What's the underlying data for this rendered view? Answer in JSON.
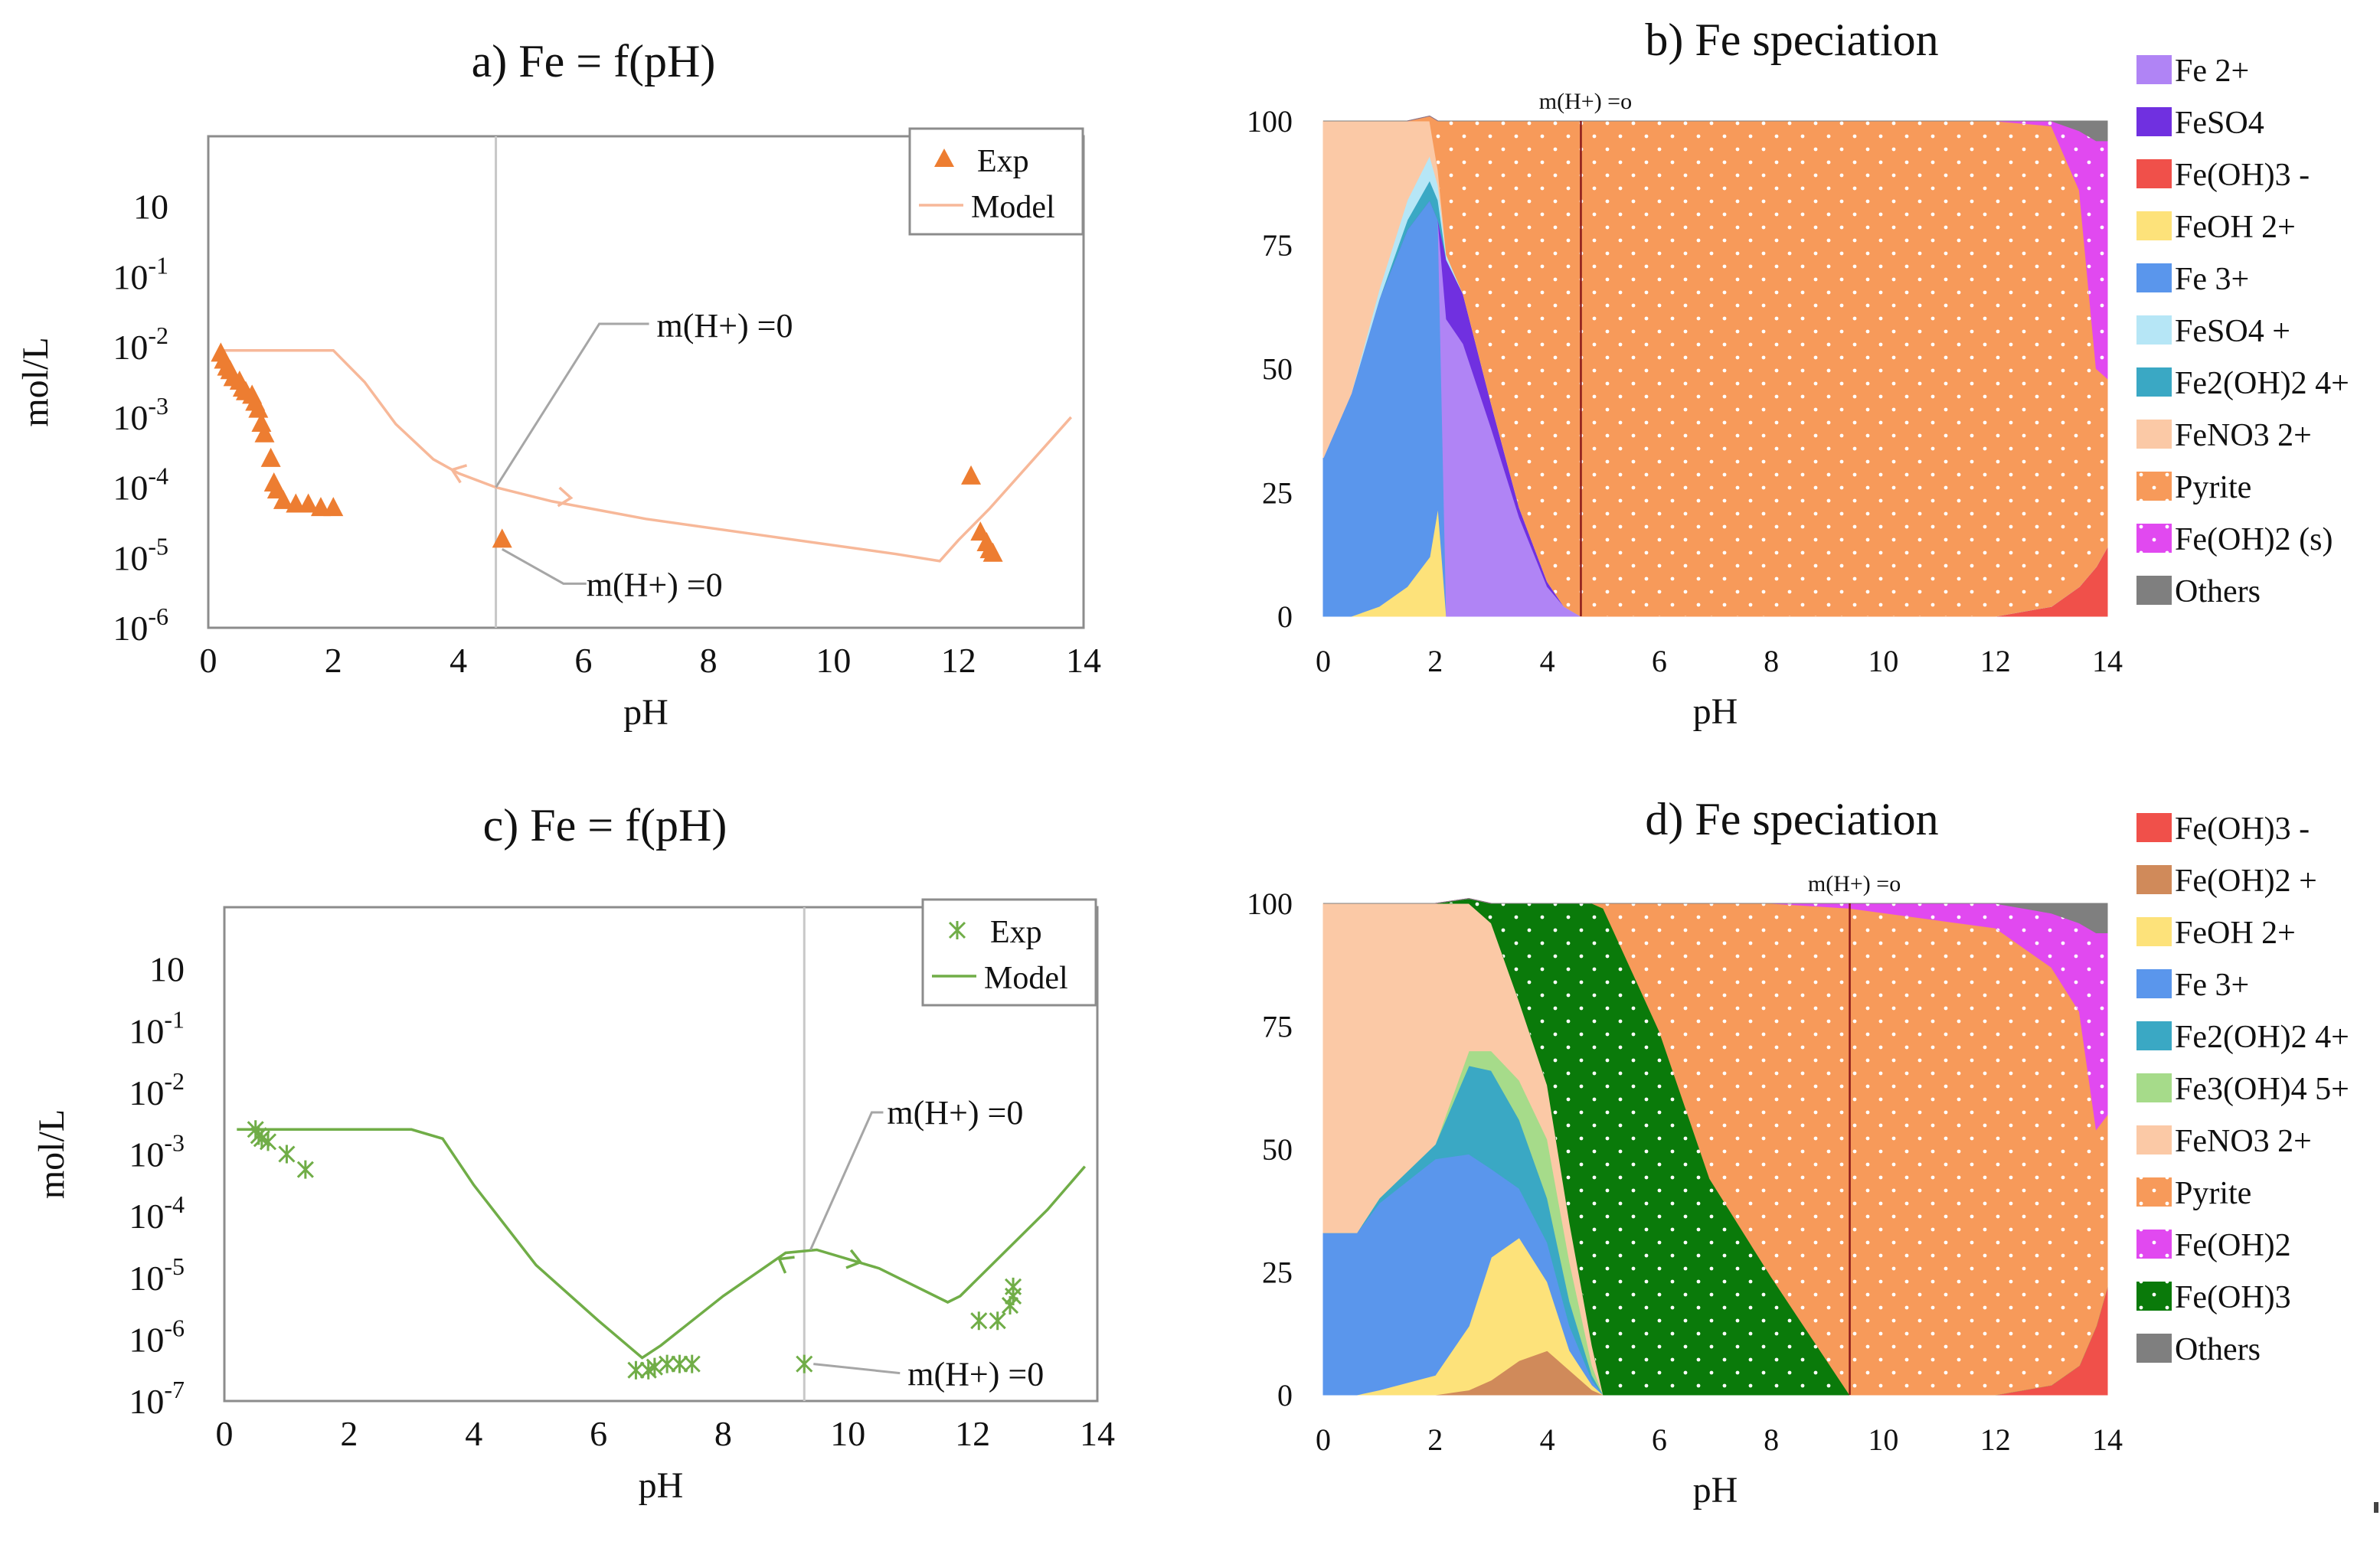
{
  "chart_data": [
    {
      "id": "a",
      "type": "scatter",
      "title": "a) Fe = f(pH)",
      "xlabel": "pH",
      "ylabel": "mol/L",
      "xlim": [
        0,
        14
      ],
      "ylim_log10": [
        -6,
        1
      ],
      "x_ticks": [
        "0",
        "2",
        "4",
        "6",
        "8",
        "10",
        "12",
        "14"
      ],
      "y_ticks": [
        "10^-6",
        "10^-5",
        "10^-4",
        "10^-3",
        "10^-2",
        "10^-1",
        "10"
      ],
      "color": "#ed7d31",
      "model_color": "#f7b899",
      "legend": [
        "Exp",
        "Model"
      ],
      "marker": "triangle",
      "vline_x": 4.6,
      "exp": [
        [
          0.2,
          -2.1
        ],
        [
          0.25,
          -2.2
        ],
        [
          0.3,
          -2.3
        ],
        [
          0.35,
          -2.35
        ],
        [
          0.4,
          -2.45
        ],
        [
          0.5,
          -2.5
        ],
        [
          0.55,
          -2.6
        ],
        [
          0.6,
          -2.65
        ],
        [
          0.7,
          -2.7
        ],
        [
          0.75,
          -2.8
        ],
        [
          0.8,
          -2.9
        ],
        [
          0.85,
          -3.1
        ],
        [
          0.9,
          -3.25
        ],
        [
          1.0,
          -3.6
        ],
        [
          1.05,
          -3.95
        ],
        [
          1.1,
          -4.05
        ],
        [
          1.2,
          -4.2
        ],
        [
          1.4,
          -4.25
        ],
        [
          1.6,
          -4.25
        ],
        [
          1.8,
          -4.3
        ],
        [
          2.0,
          -4.3
        ],
        [
          4.7,
          -4.75
        ],
        [
          12.2,
          -3.85
        ],
        [
          12.35,
          -4.65
        ],
        [
          12.45,
          -4.8
        ],
        [
          12.5,
          -4.9
        ],
        [
          12.55,
          -4.95
        ]
      ],
      "model": [
        [
          0.2,
          -2.05
        ],
        [
          1.0,
          -2.05
        ],
        [
          2.0,
          -2.05
        ],
        [
          2.5,
          -2.5
        ],
        [
          3.0,
          -3.1
        ],
        [
          3.6,
          -3.6
        ],
        [
          4.0,
          -3.8
        ],
        [
          4.6,
          -4.0
        ],
        [
          5.5,
          -4.2
        ],
        [
          7.0,
          -4.45
        ],
        [
          9.0,
          -4.7
        ],
        [
          11.0,
          -4.95
        ],
        [
          11.7,
          -5.05
        ],
        [
          12.0,
          -4.75
        ],
        [
          12.5,
          -4.3
        ],
        [
          13.2,
          -3.6
        ],
        [
          13.8,
          -3.0
        ]
      ],
      "annotations": [
        {
          "text": "m(H+) =0",
          "x": 4.6,
          "y": -4.0
        },
        {
          "text": "m(H+) =0",
          "x": 4.7,
          "y": -4.75
        }
      ]
    },
    {
      "id": "c",
      "type": "scatter",
      "title": "c) Fe = f(pH)",
      "xlabel": "pH",
      "ylabel": "mol/L",
      "xlim": [
        0,
        14
      ],
      "ylim_log10": [
        -7,
        1
      ],
      "x_ticks": [
        "0",
        "2",
        "4",
        "6",
        "8",
        "10",
        "12",
        "14"
      ],
      "y_ticks": [
        "10^-7",
        "10^-6",
        "10^-5",
        "10^-4",
        "10^-3",
        "10^-2",
        "10^-1",
        "10"
      ],
      "color": "#70ad47",
      "model_color": "#70ad47",
      "legend": [
        "Exp",
        "Model"
      ],
      "marker": "star",
      "vline_x": 9.3,
      "exp": [
        [
          0.5,
          -2.6
        ],
        [
          0.55,
          -2.7
        ],
        [
          0.6,
          -2.75
        ],
        [
          0.7,
          -2.8
        ],
        [
          1.0,
          -3.0
        ],
        [
          1.3,
          -3.25
        ],
        [
          6.6,
          -6.5
        ],
        [
          6.8,
          -6.5
        ],
        [
          6.9,
          -6.45
        ],
        [
          7.1,
          -6.4
        ],
        [
          7.3,
          -6.4
        ],
        [
          7.5,
          -6.4
        ],
        [
          9.3,
          -6.4
        ],
        [
          12.1,
          -5.7
        ],
        [
          12.4,
          -5.7
        ],
        [
          12.6,
          -5.45
        ],
        [
          12.65,
          -5.3
        ],
        [
          12.65,
          -5.15
        ]
      ],
      "model": [
        [
          0.2,
          -2.6
        ],
        [
          1.0,
          -2.6
        ],
        [
          2.0,
          -2.6
        ],
        [
          3.0,
          -2.6
        ],
        [
          3.5,
          -2.75
        ],
        [
          4.0,
          -3.5
        ],
        [
          5.0,
          -4.8
        ],
        [
          6.0,
          -5.7
        ],
        [
          6.7,
          -6.3
        ],
        [
          7.0,
          -6.1
        ],
        [
          8.0,
          -5.3
        ],
        [
          9.0,
          -4.6
        ],
        [
          9.5,
          -4.55
        ],
        [
          10.5,
          -4.85
        ],
        [
          11.6,
          -5.4
        ],
        [
          11.8,
          -5.3
        ],
        [
          12.5,
          -4.6
        ],
        [
          13.2,
          -3.9
        ],
        [
          13.8,
          -3.2
        ]
      ],
      "annotations": [
        {
          "text": "m(H+) =0",
          "x": 9.4,
          "y": -4.55
        },
        {
          "text": "m(H+) =0",
          "x": 9.3,
          "y": -6.4
        }
      ]
    },
    {
      "id": "b",
      "type": "area",
      "title": "b) Fe speciation",
      "xlabel": "pH",
      "xlim": [
        0,
        14
      ],
      "ylim": [
        0,
        100
      ],
      "x_ticks": [
        "0",
        "2",
        "4",
        "6",
        "8",
        "10",
        "12",
        "14"
      ],
      "y_ticks": [
        "0",
        "25",
        "50",
        "75",
        "100"
      ],
      "vline_x": 4.6,
      "vline_label": "m(H+) =o",
      "x": [
        0,
        0.5,
        1,
        1.5,
        1.9,
        2.05,
        2.2,
        2.5,
        3,
        3.5,
        4,
        4.3,
        4.6,
        5,
        8,
        12,
        13,
        13.5,
        13.8,
        14
      ],
      "legend": [
        {
          "name": "Fe 2+",
          "color": "#b084f5",
          "pattern": false
        },
        {
          "name": "FeSO4",
          "color": "#7030e0",
          "pattern": false
        },
        {
          "name": "Fe(OH)3 -",
          "color": "#f0504a",
          "pattern": false
        },
        {
          "name": "FeOH 2+",
          "color": "#fde27a",
          "pattern": false
        },
        {
          "name": "Fe 3+",
          "color": "#5a96ec",
          "pattern": false
        },
        {
          "name": "FeSO4 +",
          "color": "#b6e6f6",
          "pattern": false
        },
        {
          "name": "Fe2(OH)2 4+",
          "color": "#3aa8c4",
          "pattern": false
        },
        {
          "name": "FeNO3 2+",
          "color": "#fbc9a6",
          "pattern": false
        },
        {
          "name": "Pyrite",
          "color": "#f79a5a",
          "pattern": true
        },
        {
          "name": "Fe(OH)2 (s)",
          "color": "#e149f0",
          "pattern": true
        },
        {
          "name": "Others",
          "color": "#7f7f7f",
          "pattern": false
        }
      ],
      "series": [
        {
          "name": "Fe(OH)3 -",
          "values": [
            0,
            0,
            0,
            0,
            0,
            0,
            0,
            0,
            0,
            0,
            0,
            0,
            0,
            0,
            0,
            0,
            2,
            6,
            10,
            14
          ]
        },
        {
          "name": "FeOH 2+",
          "values": [
            0,
            0,
            2,
            6,
            12,
            22,
            0,
            0,
            0,
            0,
            0,
            0,
            0,
            0,
            0,
            0,
            0,
            0,
            0,
            0
          ]
        },
        {
          "name": "Fe 3+",
          "values": [
            32,
            45,
            62,
            72,
            72,
            58,
            0,
            0,
            0,
            0,
            0,
            0,
            0,
            0,
            0,
            0,
            0,
            0,
            0,
            0
          ]
        },
        {
          "name": "Fe 2+",
          "values": [
            0,
            0,
            0,
            0,
            0,
            0,
            60,
            55,
            38,
            20,
            6,
            2,
            0,
            0,
            0,
            0,
            0,
            0,
            0,
            0
          ]
        },
        {
          "name": "FeSO4",
          "values": [
            0,
            0,
            0,
            0,
            0,
            0,
            12,
            10,
            5,
            2,
            1,
            0,
            0,
            0,
            0,
            0,
            0,
            0,
            0,
            0
          ]
        },
        {
          "name": "Fe2(OH)2 4+",
          "values": [
            0,
            0,
            0,
            2,
            4,
            4,
            0,
            0,
            0,
            0,
            0,
            0,
            0,
            0,
            0,
            0,
            0,
            0,
            0,
            0
          ]
        },
        {
          "name": "FeSO4 +",
          "values": [
            0,
            0,
            2,
            4,
            5,
            3,
            1,
            0,
            0,
            0,
            0,
            0,
            0,
            0,
            0,
            0,
            0,
            0,
            0,
            0
          ]
        },
        {
          "name": "FeNO3 2+",
          "values": [
            68,
            55,
            34,
            16,
            7,
            3,
            0,
            0,
            0,
            0,
            0,
            0,
            0,
            0,
            0,
            0,
            0,
            0,
            0,
            0
          ]
        },
        {
          "name": "Pyrite",
          "values": [
            0,
            0,
            0,
            0,
            1,
            10,
            27,
            35,
            57,
            78,
            93,
            98,
            100,
            100,
            100,
            100,
            97,
            80,
            40,
            34
          ]
        },
        {
          "name": "Fe(OH)2 (s)",
          "values": [
            0,
            0,
            0,
            0,
            0,
            0,
            0,
            0,
            0,
            0,
            0,
            0,
            0,
            0,
            0,
            0,
            1,
            12,
            46,
            48
          ]
        },
        {
          "name": "Others",
          "values": [
            0,
            0,
            0,
            0,
            0,
            0,
            0,
            0,
            0,
            0,
            0,
            0,
            0,
            0,
            0,
            0,
            0,
            2,
            4,
            4
          ]
        }
      ]
    },
    {
      "id": "d",
      "type": "area",
      "title": "d) Fe speciation",
      "xlabel": "pH",
      "xlim": [
        0,
        14
      ],
      "ylim": [
        0,
        100
      ],
      "x_ticks": [
        "0",
        "2",
        "4",
        "6",
        "8",
        "10",
        "12",
        "14"
      ],
      "y_ticks": [
        "0",
        "25",
        "50",
        "75",
        "100"
      ],
      "vline_x": 9.4,
      "vline_label": "m(H+) =o",
      "x": [
        0,
        0.6,
        1,
        2,
        2.6,
        3,
        3.5,
        4,
        4.4,
        4.8,
        5,
        6,
        6.9,
        8,
        9.4,
        12,
        13,
        13.5,
        13.8,
        14
      ],
      "legend": [
        {
          "name": "Fe(OH)3 -",
          "color": "#f0504a",
          "pattern": false
        },
        {
          "name": "Fe(OH)2 +",
          "color": "#d08a5a",
          "pattern": false
        },
        {
          "name": "FeOH 2+",
          "color": "#fde27a",
          "pattern": false
        },
        {
          "name": "Fe 3+",
          "color": "#5a96ec",
          "pattern": false
        },
        {
          "name": "Fe2(OH)2 4+",
          "color": "#3aa8c4",
          "pattern": false
        },
        {
          "name": "Fe3(OH)4 5+",
          "color": "#a6db8a",
          "pattern": false
        },
        {
          "name": "FeNO3 2+",
          "color": "#fbc9a6",
          "pattern": false
        },
        {
          "name": "Pyrite",
          "color": "#f79a5a",
          "pattern": true
        },
        {
          "name": "Fe(OH)2",
          "color": "#e149f0",
          "pattern": true
        },
        {
          "name": "Fe(OH)3",
          "color": "#0a7a0a",
          "pattern": true
        },
        {
          "name": "Others",
          "color": "#7f7f7f",
          "pattern": false
        }
      ],
      "series": [
        {
          "name": "Fe(OH)3 -",
          "values": [
            0,
            0,
            0,
            0,
            0,
            0,
            0,
            0,
            0,
            0,
            0,
            0,
            0,
            0,
            0,
            0,
            2,
            6,
            14,
            22
          ]
        },
        {
          "name": "Fe(OH)2 +",
          "values": [
            0,
            0,
            0,
            0,
            1,
            3,
            7,
            9,
            5,
            1,
            0,
            0,
            0,
            0,
            0,
            0,
            0,
            0,
            0,
            0
          ]
        },
        {
          "name": "FeOH 2+",
          "values": [
            0,
            0,
            1,
            4,
            13,
            25,
            25,
            14,
            4,
            1,
            0,
            0,
            0,
            0,
            0,
            0,
            0,
            0,
            0,
            0
          ]
        },
        {
          "name": "Fe 3+",
          "values": [
            33,
            33,
            38,
            44,
            35,
            18,
            10,
            8,
            5,
            1,
            0,
            0,
            0,
            0,
            0,
            0,
            0,
            0,
            0,
            0
          ]
        },
        {
          "name": "Fe2(OH)2 4+",
          "values": [
            0,
            0,
            1,
            3,
            18,
            20,
            14,
            9,
            5,
            1,
            0,
            0,
            0,
            0,
            0,
            0,
            0,
            0,
            0,
            0
          ]
        },
        {
          "name": "Fe3(OH)4 5+",
          "values": [
            0,
            0,
            0,
            0,
            3,
            4,
            8,
            12,
            8,
            2,
            0,
            0,
            0,
            0,
            0,
            0,
            0,
            0,
            0,
            0
          ]
        },
        {
          "name": "FeNO3 2+",
          "values": [
            67,
            67,
            60,
            49,
            30,
            26,
            16,
            11,
            8,
            4,
            0,
            0,
            0,
            0,
            0,
            0,
            0,
            0,
            0,
            0
          ]
        },
        {
          "name": "Fe(OH)3",
          "values": [
            0,
            0,
            0,
            0,
            1,
            4,
            20,
            37,
            65,
            90,
            99,
            74,
            44,
            24,
            0,
            0,
            0,
            0,
            0,
            0
          ]
        },
        {
          "name": "Pyrite",
          "values": [
            0,
            0,
            0,
            0,
            0,
            0,
            0,
            0,
            0,
            0,
            1,
            26,
            56,
            76,
            99,
            95,
            85,
            72,
            40,
            35
          ]
        },
        {
          "name": "Fe(OH)2",
          "values": [
            0,
            0,
            0,
            0,
            0,
            0,
            0,
            0,
            0,
            0,
            0,
            0,
            0,
            0,
            1,
            5,
            11,
            18,
            40,
            37
          ]
        },
        {
          "name": "Others",
          "values": [
            0,
            0,
            0,
            0,
            0,
            0,
            0,
            0,
            0,
            0,
            0,
            0,
            0,
            0,
            0,
            0,
            2,
            4,
            6,
            6
          ]
        }
      ]
    }
  ]
}
